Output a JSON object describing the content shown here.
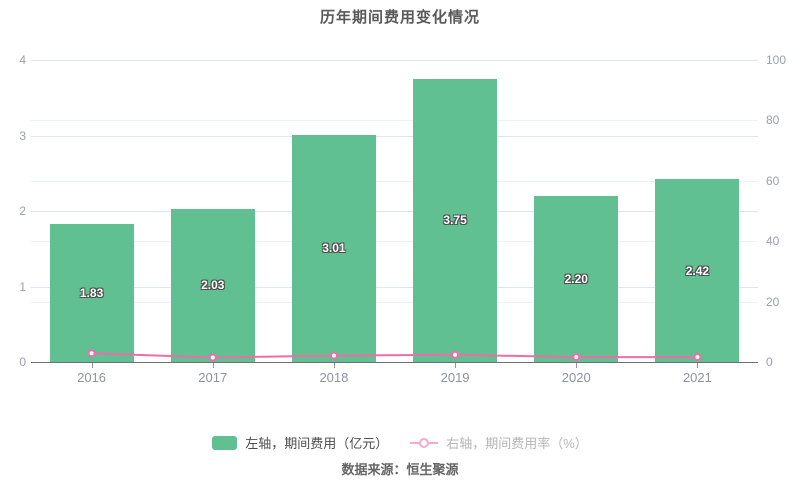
{
  "title": "历年期间费用变化情况",
  "source": "数据来源：恒生聚源",
  "legend": [
    {
      "label": "左轴，期间费用（亿元）",
      "marker": "bar-swatch",
      "color": "#61c092"
    },
    {
      "label": "右轴，期间费用率（%）",
      "marker": "line-with-circle",
      "color": "#f3abce"
    }
  ],
  "chart_data": {
    "type": "bar+line",
    "categories": [
      "2016",
      "2017",
      "2018",
      "2019",
      "2020",
      "2021"
    ],
    "series": [
      {
        "name": "期间费用（亿元）",
        "type": "bar",
        "axis": "left",
        "color": "#61c092",
        "values": [
          1.83,
          2.03,
          3.01,
          3.75,
          2.2,
          2.42
        ],
        "labels": [
          "1.83",
          "2.03",
          "3.01",
          "3.75",
          "2.20",
          "2.42"
        ]
      },
      {
        "name": "期间费用率（%）",
        "type": "line",
        "axis": "right",
        "color": "#ee6eaa",
        "marker": "hollow-circle",
        "values_estimated_from_pixels": true,
        "values": [
          2.9,
          1.5,
          2.1,
          2.4,
          1.6,
          1.6
        ]
      }
    ],
    "left_axis": {
      "min": 0,
      "max": 4,
      "ticks": [
        0,
        1,
        2,
        3,
        4
      ]
    },
    "right_axis": {
      "min": 0,
      "max": 100,
      "ticks": [
        0,
        20,
        40,
        60,
        80,
        100
      ]
    },
    "grid": true,
    "legend_position": "bottom",
    "colors": {
      "bar": "#61c092",
      "line": "#ee6eaa",
      "grid_major": "#dde5f2",
      "grid_minor": "#edf1f9",
      "axis_line": "#6e7079"
    }
  }
}
